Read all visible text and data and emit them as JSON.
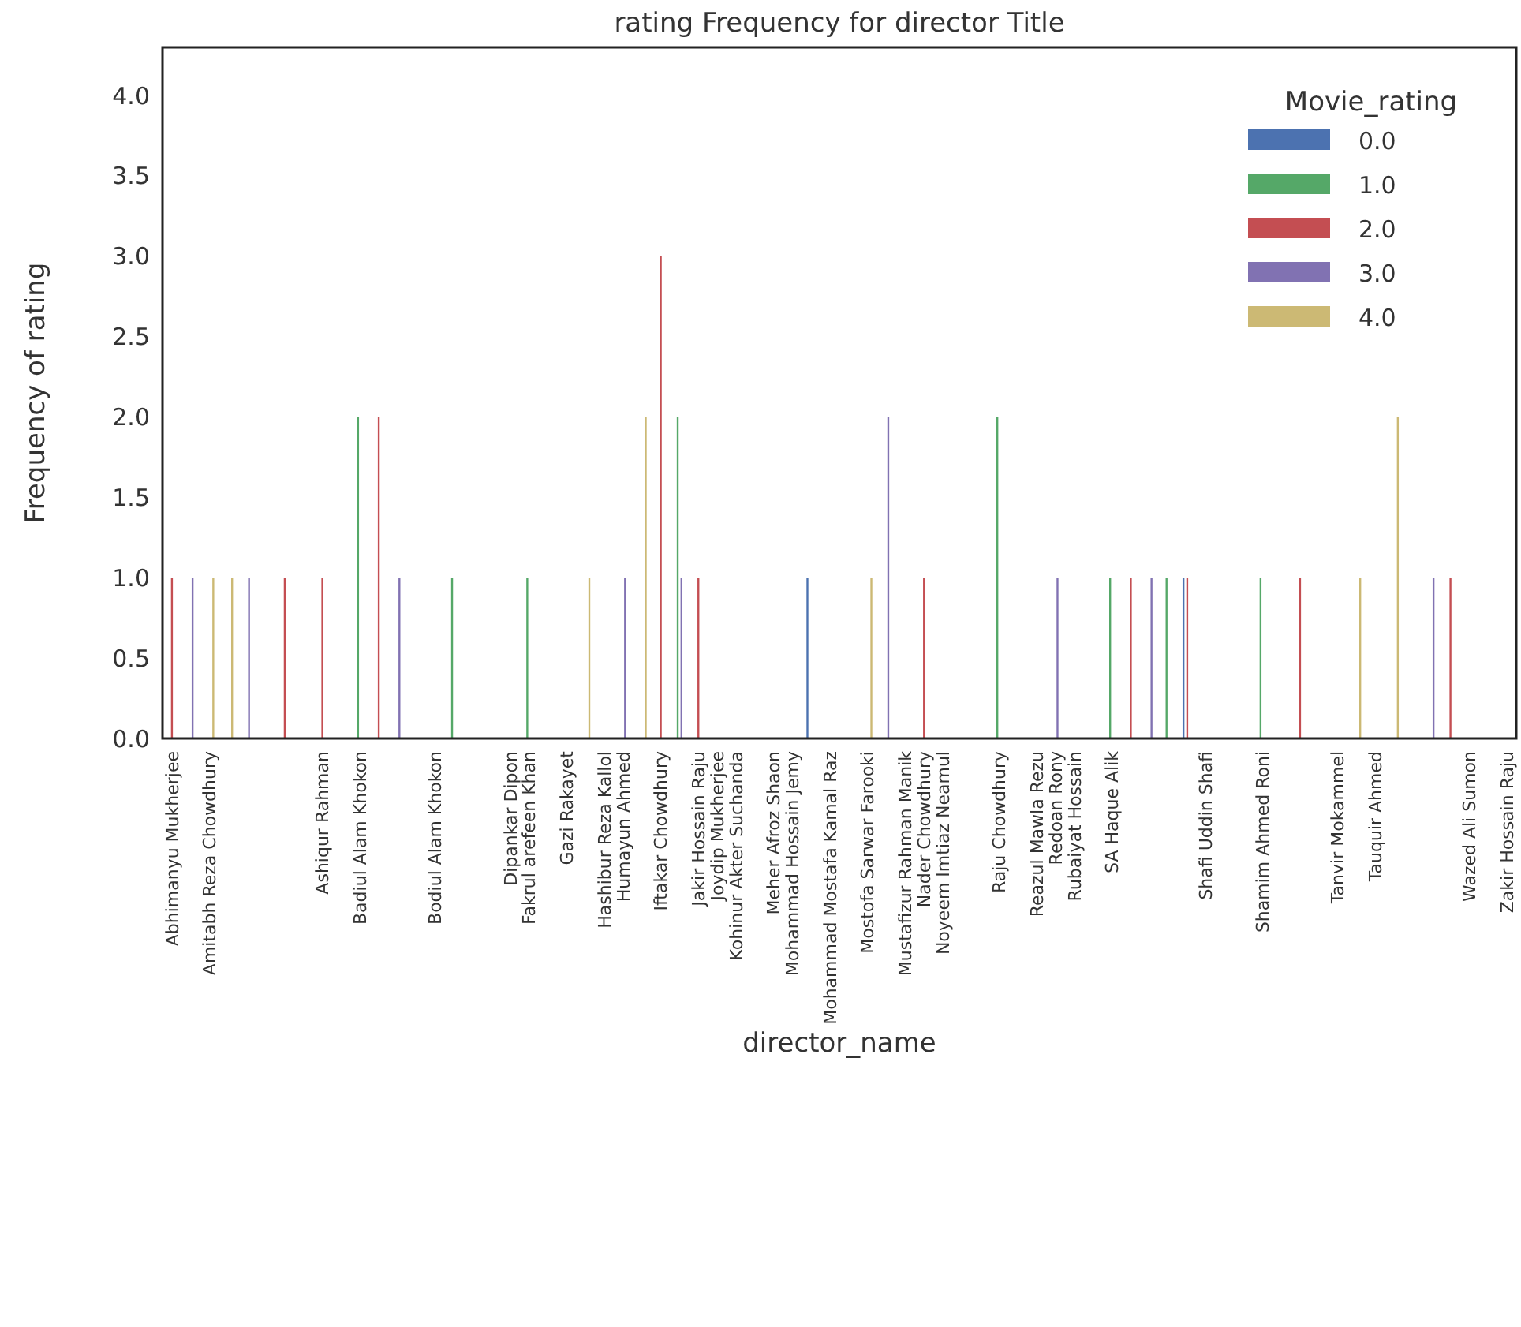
{
  "chart_data": {
    "type": "bar",
    "title": "rating Frequency for director Title",
    "xlabel": "director_name",
    "ylabel": "Frequency of rating",
    "legend_title": "Movie_rating",
    "legend": "top right",
    "grid": false,
    "categories": [
      "Abhimanyu Mukherjee",
      null,
      "Amitabh Reza Chowdhury",
      null,
      null,
      null,
      null,
      null,
      "Ashiqur Rahman",
      null,
      "Badiul Alam Khokon",
      null,
      null,
      null,
      "Bodiul Alam Khokon",
      null,
      null,
      null,
      "Dipankar Dipon",
      "Fakrul arefeen Khan",
      null,
      "Gazi Rakayet",
      null,
      "Hashibur Reza Kallol",
      "Humayun Ahmed",
      null,
      "Iftakar Chowdhury",
      null,
      "Jakir Hossain Raju",
      "Joydip Mukherjee",
      "Kohinur Akter Suchanda",
      null,
      "Meher Afroz Shaon",
      "Mohammad Hossain Jemy",
      null,
      "Mohammad Mostafa Kamal Raz",
      null,
      "Mostofa Sarwar Farooki",
      null,
      "Mustafizur Rahman Manik",
      "Nader Chowdhury",
      "Noyeem Imtiaz Neamul",
      null,
      null,
      "Raju Chowdhury",
      null,
      "Reazul Mawla Rezu",
      "Redoan Rony",
      "Rubaiyat Hossain",
      null,
      "SA Haque Alik",
      null,
      null,
      null,
      null,
      "Shafi Uddin Shafi",
      null,
      null,
      "Shamim Ahmed Roni",
      null,
      null,
      null,
      "Tanvir Mokammel",
      null,
      "Tauquir Ahmed",
      null,
      null,
      null,
      null,
      "Wazed Ali Sumon",
      null,
      "Zakir Hossain Raju"
    ],
    "ylim": [
      0,
      4.3
    ],
    "yticks": [
      {
        "value": 0,
        "label": "0.0"
      },
      {
        "value": 0.5,
        "label": "0.5"
      },
      {
        "value": 1,
        "label": "1.0"
      },
      {
        "value": 1.5,
        "label": "1.5"
      },
      {
        "value": 2,
        "label": "2.0"
      },
      {
        "value": 2.5,
        "label": "2.5"
      },
      {
        "value": 3,
        "label": "3.0"
      },
      {
        "value": 3.5,
        "label": "3.5"
      },
      {
        "value": 4,
        "label": "4.0"
      }
    ],
    "series": [
      {
        "name": "0.0",
        "color": "#4c72b0",
        "values": [
          null,
          null,
          null,
          null,
          null,
          null,
          null,
          null,
          null,
          null,
          null,
          null,
          null,
          null,
          null,
          null,
          null,
          null,
          null,
          null,
          null,
          null,
          null,
          null,
          null,
          null,
          null,
          null,
          null,
          null,
          null,
          null,
          null,
          null,
          1,
          null,
          null,
          null,
          null,
          null,
          null,
          null,
          null,
          null,
          null,
          null,
          null,
          null,
          null,
          null,
          null,
          null,
          null,
          null,
          1,
          null,
          null,
          null,
          null,
          null,
          null,
          null,
          null,
          null,
          null,
          null,
          null,
          null,
          null,
          null,
          null,
          null
        ]
      },
      {
        "name": "1.0",
        "color": "#55a868",
        "values": [
          null,
          null,
          null,
          null,
          null,
          null,
          null,
          null,
          null,
          null,
          2,
          null,
          null,
          null,
          null,
          1,
          null,
          null,
          null,
          1,
          null,
          null,
          null,
          null,
          null,
          null,
          null,
          2,
          null,
          null,
          null,
          null,
          null,
          null,
          null,
          null,
          null,
          null,
          null,
          null,
          null,
          null,
          null,
          null,
          2,
          null,
          null,
          null,
          null,
          null,
          1,
          null,
          null,
          1,
          null,
          null,
          null,
          null,
          1,
          null,
          null,
          null,
          null,
          null,
          null,
          null,
          null,
          null,
          null,
          null,
          null,
          null
        ]
      },
      {
        "name": "2.0",
        "color": "#c44e52",
        "values": [
          1,
          null,
          null,
          null,
          null,
          null,
          1,
          null,
          1,
          null,
          null,
          2,
          null,
          null,
          null,
          null,
          null,
          null,
          null,
          null,
          null,
          null,
          null,
          null,
          null,
          null,
          3,
          null,
          1,
          null,
          null,
          null,
          null,
          null,
          null,
          null,
          null,
          null,
          null,
          null,
          1,
          null,
          null,
          null,
          null,
          null,
          null,
          null,
          null,
          null,
          null,
          1,
          null,
          null,
          1,
          null,
          null,
          null,
          null,
          null,
          1,
          null,
          null,
          null,
          null,
          null,
          null,
          null,
          1,
          null,
          null,
          null
        ]
      },
      {
        "name": "3.0",
        "color": "#8172b2",
        "values": [
          null,
          1,
          null,
          null,
          1,
          null,
          null,
          null,
          null,
          null,
          null,
          null,
          1,
          null,
          null,
          null,
          null,
          null,
          null,
          null,
          null,
          null,
          null,
          null,
          1,
          null,
          null,
          1,
          null,
          null,
          null,
          null,
          null,
          null,
          null,
          null,
          null,
          null,
          2,
          null,
          null,
          null,
          null,
          null,
          null,
          null,
          null,
          1,
          null,
          null,
          null,
          null,
          1,
          null,
          null,
          null,
          null,
          null,
          null,
          null,
          null,
          null,
          null,
          null,
          null,
          null,
          null,
          1,
          null,
          null,
          null,
          null
        ]
      },
      {
        "name": "4.0",
        "color": "#ccb974",
        "values": [
          null,
          null,
          1,
          1,
          null,
          null,
          null,
          null,
          null,
          null,
          null,
          null,
          null,
          null,
          null,
          null,
          null,
          null,
          null,
          null,
          null,
          null,
          1,
          null,
          null,
          2,
          null,
          null,
          null,
          null,
          null,
          null,
          null,
          null,
          null,
          null,
          null,
          1,
          null,
          null,
          null,
          null,
          null,
          null,
          null,
          null,
          null,
          null,
          null,
          null,
          null,
          null,
          null,
          null,
          null,
          null,
          null,
          null,
          null,
          null,
          null,
          null,
          null,
          1,
          null,
          2,
          null,
          null,
          null,
          null,
          null,
          null
        ]
      }
    ]
  }
}
